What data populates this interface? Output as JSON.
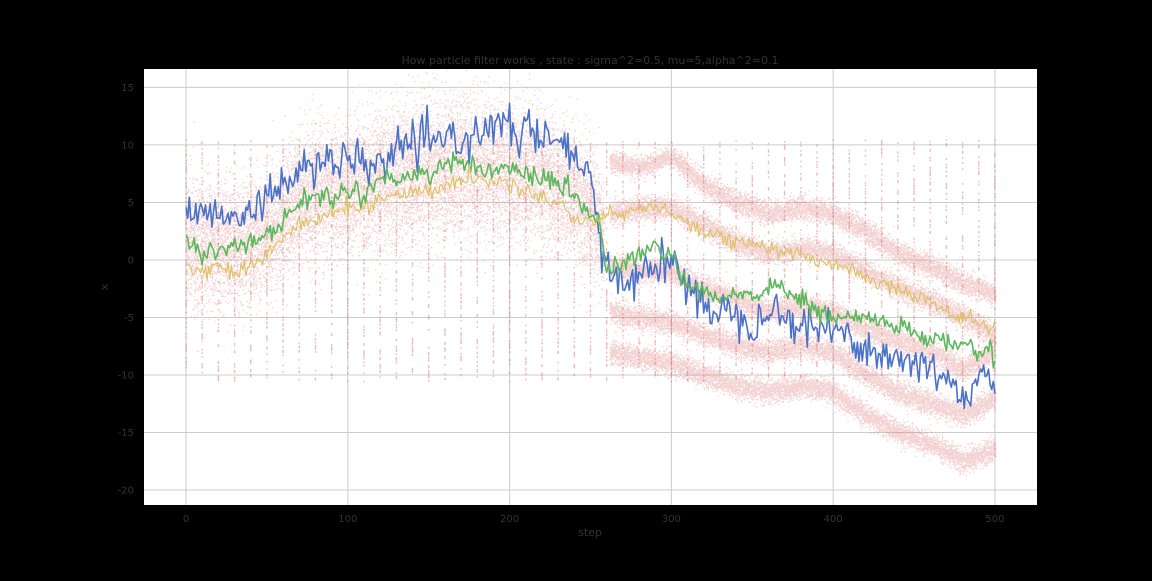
{
  "chart_data": {
    "type": "scatter",
    "title": "How particle filter works , state : sigma^2=0.5, mu=5,alpha^2=0.1",
    "xlabel": "step",
    "ylabel": "x",
    "xlim": [
      -26,
      526
    ],
    "ylim": [
      -21.3,
      16.6
    ],
    "xticks": [
      0,
      100,
      200,
      300,
      400,
      500
    ],
    "yticks": [
      -20,
      -15,
      -10,
      -5,
      0,
      5,
      10,
      15
    ],
    "grid": true,
    "legend": "none",
    "colors": {
      "background": "#000000",
      "plot_area": "#ffffff",
      "grid": "#cccccc",
      "particles": "#d95f5f",
      "true_state": "#4a72c8",
      "estimate": "#5cb85c",
      "observation": "#ddc060"
    },
    "series": [
      {
        "role": "true_state",
        "x": [
          0,
          10,
          20,
          30,
          40,
          50,
          60,
          70,
          80,
          90,
          100,
          110,
          120,
          130,
          140,
          150,
          160,
          170,
          180,
          190,
          200,
          210,
          220,
          230,
          240,
          250,
          255,
          260,
          270,
          280,
          290,
          300,
          310,
          320,
          330,
          340,
          350,
          360,
          370,
          380,
          390,
          400,
          410,
          420,
          430,
          440,
          450,
          460,
          470,
          480,
          490,
          500
        ],
        "y": [
          4.5,
          3.5,
          4.5,
          4.0,
          4.5,
          5.0,
          6.5,
          8.5,
          8.0,
          8.5,
          8.5,
          8.0,
          8.5,
          9.5,
          10.0,
          10.0,
          10.5,
          10.5,
          11.0,
          12.0,
          11.0,
          11.5,
          10.5,
          10.0,
          9.0,
          7.0,
          2.0,
          -1.0,
          -2.0,
          -1.0,
          -0.5,
          0.0,
          -2.5,
          -3.5,
          -4.5,
          -4.5,
          -5.5,
          -4.0,
          -5.0,
          -5.5,
          -6.0,
          -6.0,
          -6.5,
          -7.5,
          -8.5,
          -8.5,
          -9.0,
          -9.5,
          -10.0,
          -12.0,
          -10.5,
          -10.5
        ]
      },
      {
        "role": "estimate",
        "x": [
          0,
          10,
          20,
          30,
          40,
          50,
          60,
          70,
          80,
          90,
          100,
          110,
          120,
          130,
          140,
          150,
          160,
          170,
          180,
          190,
          200,
          210,
          220,
          230,
          240,
          250,
          255,
          260,
          270,
          280,
          290,
          300,
          310,
          320,
          330,
          340,
          350,
          360,
          370,
          380,
          390,
          400,
          410,
          420,
          430,
          440,
          450,
          460,
          470,
          480,
          490,
          500
        ],
        "y": [
          1.5,
          0.5,
          1.0,
          1.5,
          1.5,
          2.0,
          3.5,
          5.0,
          5.5,
          5.5,
          6.0,
          6.0,
          7.0,
          7.0,
          7.5,
          7.5,
          8.5,
          8.5,
          8.0,
          8.0,
          7.5,
          7.5,
          7.0,
          6.5,
          5.5,
          4.0,
          3.5,
          -1.0,
          -0.5,
          0.5,
          1.0,
          0.5,
          -2.5,
          -3.0,
          -3.5,
          -3.0,
          -3.0,
          -2.5,
          -2.5,
          -3.5,
          -4.5,
          -5.0,
          -5.0,
          -5.0,
          -5.5,
          -5.5,
          -6.5,
          -7.0,
          -7.0,
          -7.5,
          -8.0,
          -8.0
        ]
      },
      {
        "role": "observation",
        "x": [
          0,
          10,
          20,
          30,
          40,
          50,
          60,
          70,
          80,
          90,
          100,
          110,
          120,
          130,
          140,
          150,
          160,
          170,
          180,
          190,
          200,
          210,
          220,
          230,
          240,
          250,
          260,
          270,
          280,
          290,
          300,
          310,
          320,
          330,
          340,
          350,
          360,
          370,
          380,
          390,
          400,
          410,
          420,
          430,
          440,
          450,
          460,
          470,
          480,
          490,
          500
        ],
        "y": [
          -0.5,
          -1.0,
          -0.5,
          -1.0,
          -0.5,
          0.5,
          2.0,
          3.0,
          3.5,
          4.0,
          4.5,
          4.5,
          5.5,
          5.5,
          6.0,
          6.0,
          6.5,
          7.0,
          7.0,
          7.0,
          6.5,
          6.0,
          5.5,
          5.0,
          3.5,
          3.5,
          4.0,
          4.0,
          4.5,
          4.5,
          4.0,
          3.5,
          2.5,
          2.0,
          1.5,
          1.5,
          1.0,
          0.5,
          0.5,
          0.0,
          -0.5,
          -0.5,
          -1.5,
          -2.0,
          -2.5,
          -3.0,
          -3.5,
          -4.5,
          -5.0,
          -5.5,
          -6.0
        ]
      }
    ],
    "particles": {
      "bands": [
        {
          "x": [
            0,
            10,
            30,
            50,
            70,
            100,
            130,
            160,
            190,
            210,
            230,
            250,
            258
          ],
          "center": [
            2.0,
            1.0,
            1.5,
            2.0,
            5.5,
            6.0,
            7.5,
            8.0,
            8.0,
            7.5,
            6.5,
            4.5,
            2.0
          ],
          "spread": [
            5.0,
            5.0,
            4.5,
            4.5,
            5.0,
            5.0,
            5.5,
            5.5,
            5.5,
            5.0,
            5.0,
            5.0,
            4.0
          ]
        },
        {
          "x": [
            262,
            280,
            300,
            320,
            340,
            360,
            380,
            400,
            420,
            440,
            460,
            480,
            500
          ],
          "center": [
            8.5,
            8.0,
            9.0,
            6.5,
            5.0,
            4.0,
            4.5,
            4.0,
            2.5,
            0.5,
            -0.5,
            -2.0,
            -3.0
          ],
          "spread": [
            0.8,
            0.8,
            0.8,
            0.9,
            0.9,
            0.9,
            0.9,
            0.9,
            0.9,
            0.9,
            0.9,
            0.9,
            0.9
          ]
        },
        {
          "x": [
            262,
            280,
            300,
            320,
            340,
            360,
            380,
            400,
            420,
            440,
            460,
            480,
            500
          ],
          "center": [
            4.0,
            4.5,
            4.5,
            3.0,
            1.5,
            0.5,
            1.0,
            0.5,
            -1.0,
            -2.5,
            -3.5,
            -5.0,
            -6.5
          ],
          "spread": [
            0.9,
            0.9,
            0.9,
            0.9,
            0.9,
            0.9,
            0.9,
            0.9,
            0.9,
            0.9,
            0.9,
            0.9,
            0.9
          ]
        },
        {
          "x": [
            262,
            280,
            300,
            320,
            340,
            360,
            380,
            400,
            420,
            440,
            460,
            480,
            500
          ],
          "center": [
            -0.5,
            -1.0,
            -1.0,
            -2.5,
            -3.5,
            -4.5,
            -4.0,
            -4.5,
            -6.0,
            -7.0,
            -8.0,
            -9.5,
            -8.0
          ],
          "spread": [
            0.9,
            0.9,
            0.9,
            0.9,
            0.9,
            0.9,
            0.9,
            0.9,
            0.9,
            0.9,
            0.9,
            0.9,
            0.9
          ]
        },
        {
          "x": [
            262,
            280,
            300,
            320,
            340,
            360,
            380,
            400,
            420,
            440,
            460,
            480,
            500
          ],
          "center": [
            -4.5,
            -5.0,
            -5.5,
            -6.5,
            -7.5,
            -8.0,
            -7.5,
            -8.0,
            -10.0,
            -11.5,
            -12.5,
            -13.5,
            -12.0
          ],
          "spread": [
            0.9,
            0.9,
            0.9,
            0.9,
            0.9,
            0.9,
            0.9,
            0.9,
            0.9,
            0.9,
            0.9,
            0.9,
            0.9
          ]
        },
        {
          "x": [
            262,
            280,
            300,
            320,
            340,
            360,
            380,
            400,
            420,
            440,
            460,
            480,
            500
          ],
          "center": [
            -8.0,
            -8.5,
            -9.0,
            -10.0,
            -11.0,
            -11.5,
            -11.0,
            -11.5,
            -13.5,
            -15.0,
            -16.0,
            -17.5,
            -16.5
          ],
          "spread": [
            0.9,
            0.9,
            0.9,
            0.9,
            0.9,
            0.9,
            0.9,
            0.9,
            0.9,
            0.9,
            0.9,
            0.9,
            0.9
          ]
        }
      ],
      "resample_columns": {
        "start": 0,
        "end": 500,
        "step": 10,
        "ymin": -10.5,
        "ymax": 10.5
      }
    }
  }
}
